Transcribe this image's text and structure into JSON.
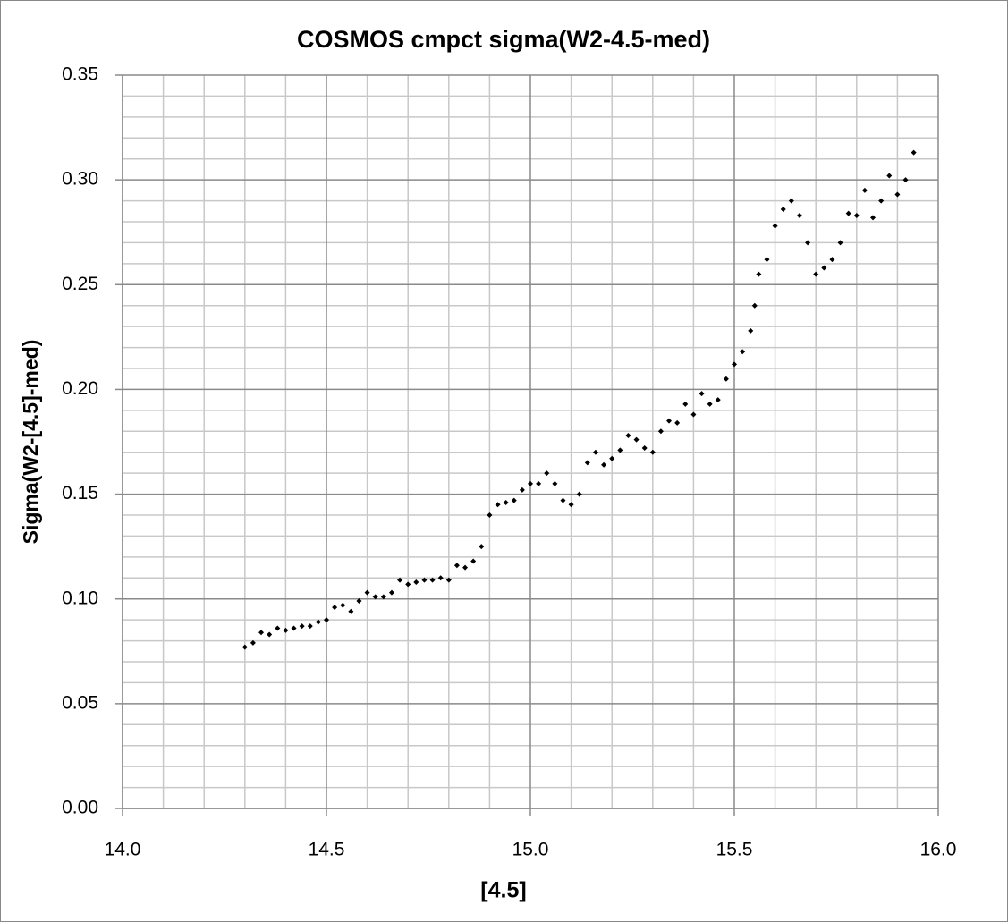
{
  "chart_data": {
    "type": "scatter",
    "title": "COSMOS cmpct sigma(W2-4.5-med)",
    "x_label": "[4.5]",
    "y_label": "Sigma(W2-[4.5]-med)",
    "color": "#000000",
    "grid": true,
    "xlim": [
      14.0,
      16.0
    ],
    "ylim": [
      0.0,
      0.35
    ],
    "xticks": [
      {
        "value": 14.0,
        "label": "14.0"
      },
      {
        "value": 14.5,
        "label": "14.5"
      },
      {
        "value": 15.0,
        "label": "15.0"
      },
      {
        "value": 15.5,
        "label": "15.5"
      },
      {
        "value": 16.0,
        "label": "16.0"
      }
    ],
    "yticks": [
      {
        "value": 0.0,
        "label": "0.00"
      },
      {
        "value": 0.05,
        "label": "0.05"
      },
      {
        "value": 0.1,
        "label": "0.10"
      },
      {
        "value": 0.15,
        "label": "0.15"
      },
      {
        "value": 0.2,
        "label": "0.20"
      },
      {
        "value": 0.25,
        "label": "0.25"
      },
      {
        "value": 0.3,
        "label": "0.30"
      },
      {
        "value": 0.35,
        "label": "0.35"
      }
    ],
    "x_minor_ticks": [
      14.1,
      14.2,
      14.3,
      14.4,
      14.6,
      14.7,
      14.8,
      14.9,
      15.1,
      15.2,
      15.3,
      15.4,
      15.6,
      15.7,
      15.8,
      15.9
    ],
    "y_minor_ticks": [
      0.01,
      0.02,
      0.03,
      0.04,
      0.06,
      0.07,
      0.08,
      0.09,
      0.11,
      0.12,
      0.13,
      0.14,
      0.16,
      0.17,
      0.18,
      0.19,
      0.21,
      0.22,
      0.23,
      0.24,
      0.26,
      0.27,
      0.28,
      0.29,
      0.31,
      0.32,
      0.33,
      0.34
    ],
    "x": [
      14.3,
      14.32,
      14.34,
      14.36,
      14.38,
      14.4,
      14.42,
      14.44,
      14.46,
      14.48,
      14.5,
      14.52,
      14.54,
      14.56,
      14.58,
      14.6,
      14.62,
      14.64,
      14.66,
      14.68,
      14.7,
      14.72,
      14.74,
      14.76,
      14.78,
      14.8,
      14.82,
      14.84,
      14.86,
      14.88,
      14.9,
      14.92,
      14.94,
      14.96,
      14.98,
      15.0,
      15.02,
      15.04,
      15.06,
      15.08,
      15.1,
      15.12,
      15.14,
      15.16,
      15.18,
      15.2,
      15.22,
      15.24,
      15.26,
      15.28,
      15.3,
      15.32,
      15.34,
      15.36,
      15.38,
      15.4,
      15.42,
      15.44,
      15.46,
      15.48,
      15.5,
      15.52,
      15.54,
      15.55,
      15.56,
      15.58,
      15.6,
      15.62,
      15.64,
      15.66,
      15.68,
      15.7,
      15.72,
      15.74,
      15.76,
      15.78,
      15.8,
      15.82,
      15.84,
      15.86,
      15.88,
      15.9,
      15.92,
      15.94
    ],
    "values": [
      0.077,
      0.079,
      0.084,
      0.083,
      0.086,
      0.085,
      0.086,
      0.087,
      0.087,
      0.089,
      0.09,
      0.096,
      0.097,
      0.094,
      0.099,
      0.103,
      0.101,
      0.101,
      0.103,
      0.109,
      0.107,
      0.108,
      0.109,
      0.109,
      0.11,
      0.109,
      0.116,
      0.115,
      0.118,
      0.125,
      0.14,
      0.145,
      0.146,
      0.147,
      0.152,
      0.155,
      0.155,
      0.16,
      0.155,
      0.147,
      0.145,
      0.15,
      0.165,
      0.17,
      0.164,
      0.167,
      0.171,
      0.178,
      0.176,
      0.172,
      0.17,
      0.18,
      0.185,
      0.184,
      0.193,
      0.188,
      0.198,
      0.193,
      0.195,
      0.205,
      0.212,
      0.218,
      0.228,
      0.24,
      0.255,
      0.262,
      0.278,
      0.286,
      0.29,
      0.283,
      0.27,
      0.255,
      0.258,
      0.262,
      0.27,
      0.284,
      0.283,
      0.295,
      0.282,
      0.29,
      0.302,
      0.293,
      0.3,
      0.313
    ]
  }
}
